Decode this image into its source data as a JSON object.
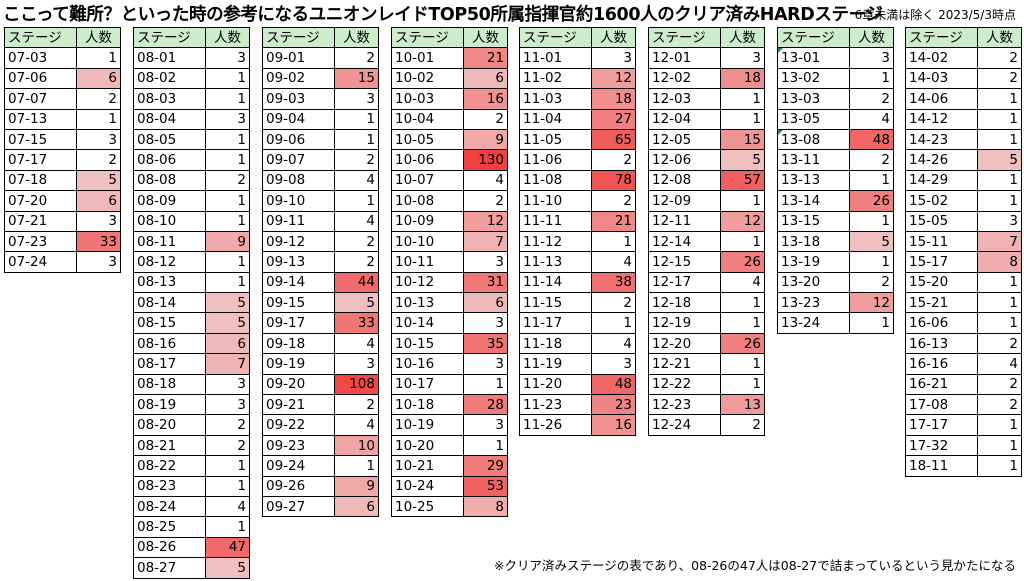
{
  "title": "ここって難所？といった時の参考になるユニオンレイドTOP50所属指揮官約1600人のクリア済みHARDステージ",
  "note": "6章未満は除く 2023/5/3時点",
  "footer": "※クリア済みステージの表であり、08-26の47人は08-27で詰まっているという見かたになる",
  "header": {
    "stage": "ステージ",
    "count": "人数"
  },
  "heat_color": "#f04040",
  "columns": [
    {
      "rows": [
        [
          "07-03",
          1
        ],
        [
          "07-06",
          6
        ],
        [
          "07-07",
          2
        ],
        [
          "07-13",
          1
        ],
        [
          "07-15",
          3
        ],
        [
          "07-17",
          2
        ],
        [
          "07-18",
          5
        ],
        [
          "07-20",
          6
        ],
        [
          "07-21",
          3
        ],
        [
          "07-23",
          33
        ],
        [
          "07-24",
          3
        ]
      ]
    },
    {
      "rows": [
        [
          "08-01",
          3
        ],
        [
          "08-02",
          1
        ],
        [
          "08-03",
          1
        ],
        [
          "08-04",
          3
        ],
        [
          "08-05",
          1
        ],
        [
          "08-06",
          1
        ],
        [
          "08-08",
          2
        ],
        [
          "08-09",
          1
        ],
        [
          "08-10",
          1
        ],
        [
          "08-11",
          9
        ],
        [
          "08-12",
          1
        ],
        [
          "08-13",
          1
        ],
        [
          "08-14",
          5
        ],
        [
          "08-15",
          5
        ],
        [
          "08-16",
          6
        ],
        [
          "08-17",
          7
        ],
        [
          "08-18",
          3
        ],
        [
          "08-19",
          3
        ],
        [
          "08-20",
          2
        ],
        [
          "08-21",
          2
        ],
        [
          "08-22",
          1
        ],
        [
          "08-23",
          1
        ],
        [
          "08-24",
          4
        ],
        [
          "08-25",
          1
        ],
        [
          "08-26",
          47
        ],
        [
          "08-27",
          5
        ]
      ]
    },
    {
      "rows": [
        [
          "09-01",
          2
        ],
        [
          "09-02",
          15
        ],
        [
          "09-03",
          3
        ],
        [
          "09-04",
          1
        ],
        [
          "09-06",
          1
        ],
        [
          "09-07",
          2
        ],
        [
          "09-08",
          4
        ],
        [
          "09-10",
          1
        ],
        [
          "09-11",
          4
        ],
        [
          "09-12",
          2
        ],
        [
          "09-13",
          2
        ],
        [
          "09-14",
          44
        ],
        [
          "09-15",
          5
        ],
        [
          "09-17",
          33
        ],
        [
          "09-18",
          4
        ],
        [
          "09-19",
          3
        ],
        [
          "09-20",
          108
        ],
        [
          "09-21",
          2
        ],
        [
          "09-22",
          4
        ],
        [
          "09-23",
          10
        ],
        [
          "09-24",
          1
        ],
        [
          "09-26",
          9
        ],
        [
          "09-27",
          6
        ]
      ]
    },
    {
      "rows": [
        [
          "10-01",
          21
        ],
        [
          "10-02",
          6
        ],
        [
          "10-03",
          16
        ],
        [
          "10-04",
          2
        ],
        [
          "10-05",
          9
        ],
        [
          "10-06",
          130
        ],
        [
          "10-07",
          4
        ],
        [
          "10-08",
          2
        ],
        [
          "10-09",
          12
        ],
        [
          "10-10",
          7
        ],
        [
          "10-11",
          3
        ],
        [
          "10-12",
          31
        ],
        [
          "10-13",
          6
        ],
        [
          "10-14",
          3
        ],
        [
          "10-15",
          35
        ],
        [
          "10-16",
          3
        ],
        [
          "10-17",
          1
        ],
        [
          "10-18",
          28
        ],
        [
          "10-19",
          3
        ],
        [
          "10-20",
          1
        ],
        [
          "10-21",
          29
        ],
        [
          "10-24",
          53
        ],
        [
          "10-25",
          8
        ]
      ]
    },
    {
      "rows": [
        [
          "11-01",
          3
        ],
        [
          "11-02",
          12
        ],
        [
          "11-03",
          18
        ],
        [
          "11-04",
          27
        ],
        [
          "11-05",
          65
        ],
        [
          "11-06",
          2
        ],
        [
          "11-08",
          78
        ],
        [
          "11-10",
          2
        ],
        [
          "11-11",
          21
        ],
        [
          "11-12",
          1
        ],
        [
          "11-13",
          4
        ],
        [
          "11-14",
          38
        ],
        [
          "11-15",
          2
        ],
        [
          "11-17",
          1
        ],
        [
          "11-18",
          4
        ],
        [
          "11-19",
          3
        ],
        [
          "11-20",
          48
        ],
        [
          "11-23",
          23
        ],
        [
          "11-26",
          16
        ]
      ]
    },
    {
      "rows": [
        [
          "12-01",
          3
        ],
        [
          "12-02",
          18
        ],
        [
          "12-03",
          1
        ],
        [
          "12-04",
          1
        ],
        [
          "12-05",
          15
        ],
        [
          "12-06",
          5
        ],
        [
          "12-08",
          57
        ],
        [
          "12-09",
          1
        ],
        [
          "12-11",
          12
        ],
        [
          "12-14",
          1
        ],
        [
          "12-15",
          26
        ],
        [
          "12-17",
          4
        ],
        [
          "12-18",
          1
        ],
        [
          "12-19",
          1
        ],
        [
          "12-20",
          26
        ],
        [
          "12-21",
          1
        ],
        [
          "12-22",
          1
        ],
        [
          "12-23",
          13
        ],
        [
          "12-24",
          2
        ]
      ]
    },
    {
      "rows": [
        [
          "13-01",
          3
        ],
        [
          "13-02",
          1
        ],
        [
          "13-03",
          2
        ],
        [
          "13-05",
          4
        ],
        [
          "13-08",
          48
        ],
        [
          "13-11",
          2
        ],
        [
          "13-13",
          1
        ],
        [
          "13-14",
          26
        ],
        [
          "13-15",
          1
        ],
        [
          "13-18",
          5
        ],
        [
          "13-19",
          1
        ],
        [
          "13-20",
          2
        ],
        [
          "13-23",
          12
        ],
        [
          "13-24",
          1
        ]
      ]
    },
    {
      "rows": [
        [
          "14-02",
          2
        ],
        [
          "14-03",
          2
        ],
        [
          "14-06",
          1
        ],
        [
          "14-12",
          1
        ],
        [
          "14-23",
          1
        ],
        [
          "14-26",
          5
        ],
        [
          "14-29",
          1
        ],
        [
          "15-02",
          1
        ],
        [
          "15-05",
          3
        ],
        [
          "15-11",
          7
        ],
        [
          "15-17",
          8
        ],
        [
          "15-20",
          1
        ],
        [
          "15-21",
          1
        ],
        [
          "16-06",
          1
        ],
        [
          "16-13",
          2
        ],
        [
          "16-16",
          4
        ],
        [
          "16-21",
          2
        ],
        [
          "17-08",
          2
        ],
        [
          "17-17",
          1
        ],
        [
          "17-32",
          1
        ],
        [
          "18-11",
          1
        ]
      ]
    }
  ]
}
